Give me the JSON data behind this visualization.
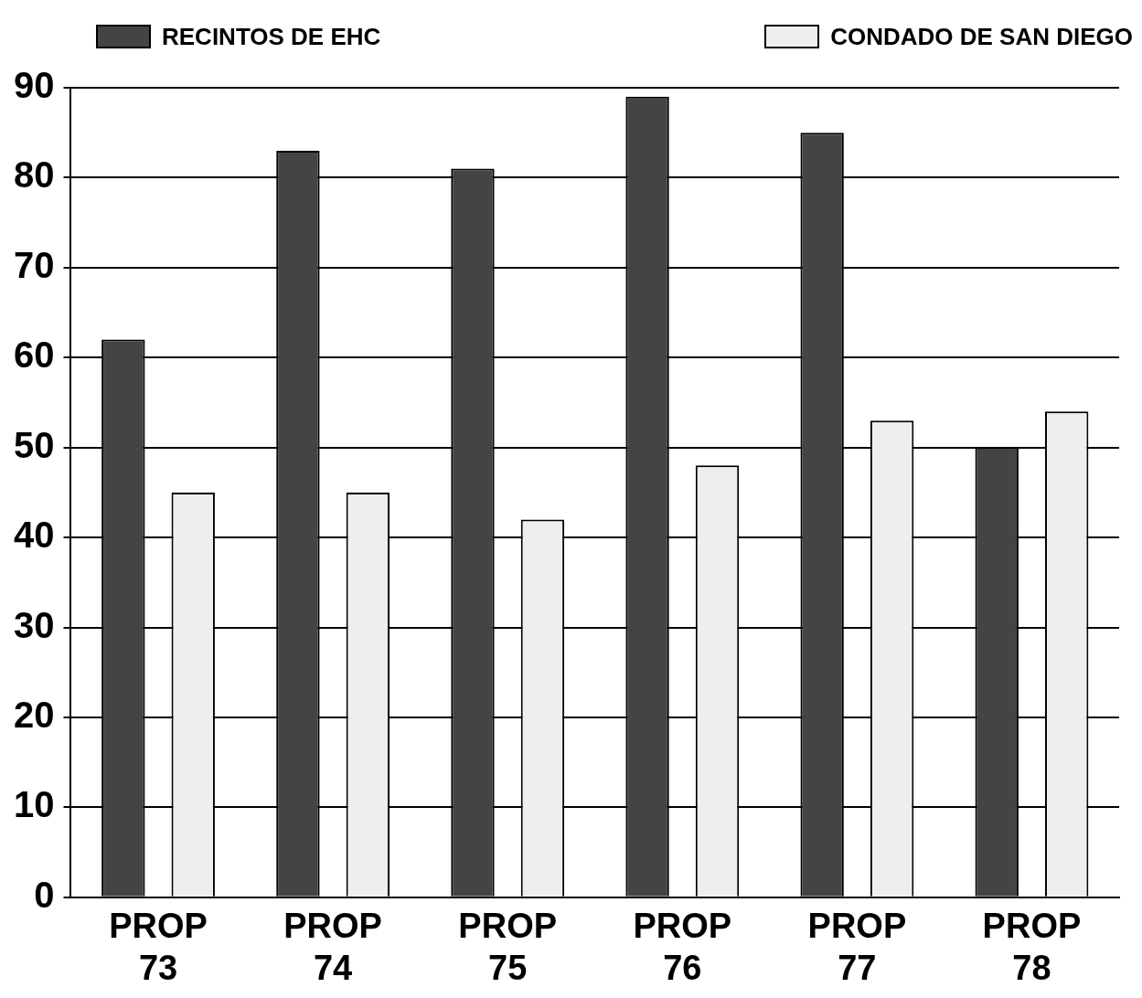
{
  "chart_data": {
    "type": "bar",
    "categories": [
      "PROP 73",
      "PROP 74",
      "PROP 75",
      "PROP 76",
      "PROP 77",
      "PROP 78"
    ],
    "series": [
      {
        "name": "RECINTOS DE EHC",
        "color": "#444444",
        "values": [
          62,
          83,
          81,
          89,
          85,
          50
        ]
      },
      {
        "name": "CONDADO DE SAN DIEGO",
        "color": "#eeeeee",
        "values": [
          45,
          45,
          42,
          48,
          53,
          54
        ]
      }
    ],
    "ylim": [
      0,
      90
    ],
    "yticks": [
      0,
      10,
      20,
      30,
      40,
      50,
      60,
      70,
      80,
      90
    ],
    "grid": "y",
    "legend": "top"
  }
}
